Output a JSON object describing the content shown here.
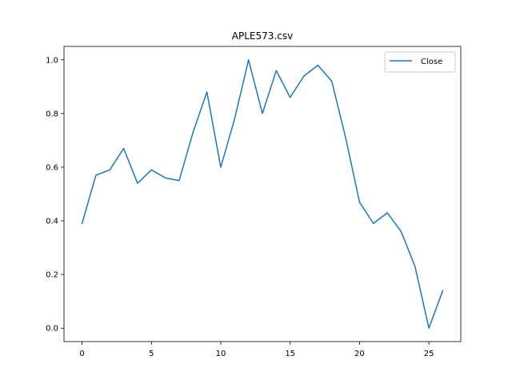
{
  "chart_data": {
    "type": "line",
    "title": "APLE573.csv",
    "xlabel": "",
    "ylabel": "",
    "xlim": [
      -1.3,
      27.3
    ],
    "ylim": [
      -0.05,
      1.05
    ],
    "xticks": [
      0,
      5,
      10,
      15,
      20,
      25
    ],
    "yticks": [
      0.0,
      0.2,
      0.4,
      0.6,
      0.8,
      1.0
    ],
    "xtick_labels": [
      "0",
      "5",
      "10",
      "15",
      "20",
      "25"
    ],
    "ytick_labels": [
      "0.0",
      "0.2",
      "0.4",
      "0.6",
      "0.8",
      "1.0"
    ],
    "grid": false,
    "legend_position": "top-right",
    "series": [
      {
        "name": "Close",
        "color": "#1f77b4",
        "x": [
          0,
          1,
          2,
          3,
          4,
          5,
          6,
          7,
          8,
          9,
          10,
          11,
          12,
          13,
          14,
          15,
          16,
          17,
          18,
          19,
          20,
          21,
          22,
          23,
          24,
          25,
          26
        ],
        "values": [
          0.39,
          0.57,
          0.59,
          0.67,
          0.54,
          0.59,
          0.56,
          0.55,
          0.73,
          0.88,
          0.6,
          0.78,
          1.0,
          0.8,
          0.96,
          0.86,
          0.94,
          0.98,
          0.92,
          0.71,
          0.47,
          0.39,
          0.43,
          0.36,
          0.23,
          0.0,
          0.14
        ]
      }
    ]
  }
}
